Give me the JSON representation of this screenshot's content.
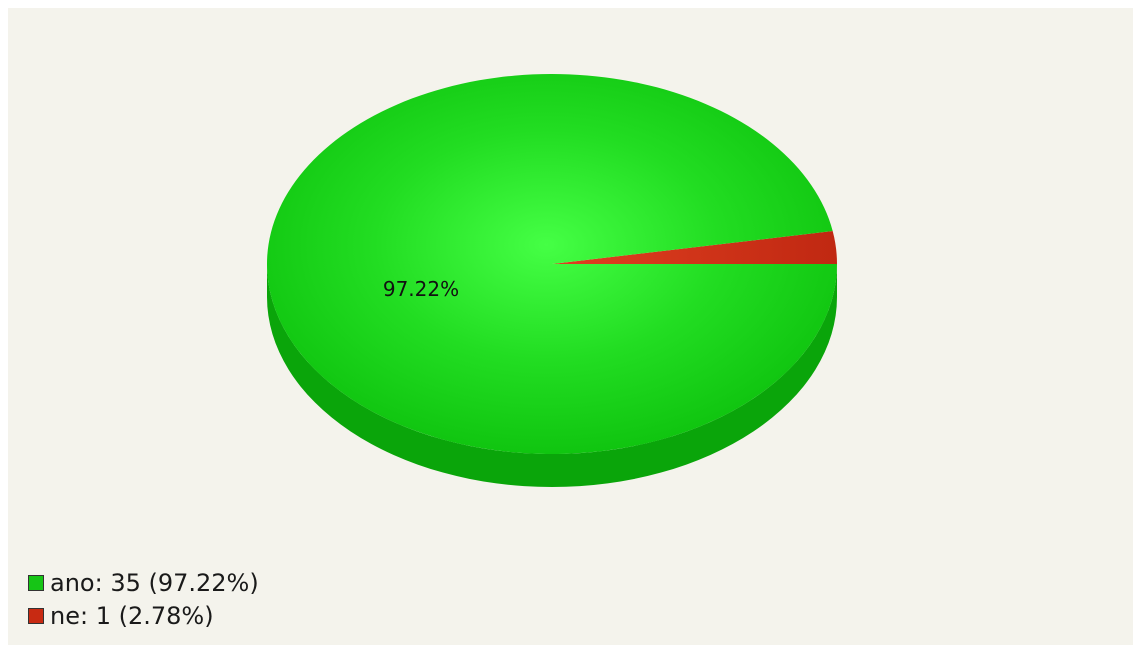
{
  "chart_data": {
    "type": "pie",
    "title": "",
    "slices": [
      {
        "label": "ano",
        "value": 35,
        "percent": "97.22%",
        "color": "#16c516"
      },
      {
        "label": "ne",
        "value": 1,
        "percent": "2.78%",
        "color": "#c82a12"
      }
    ],
    "legend_position": "bottom-left",
    "style": "3d"
  },
  "legend": {
    "items": [
      {
        "text": "ano: 35 (97.22%)",
        "color": "#16c516"
      },
      {
        "text": "ne: 1 (2.78%)",
        "color": "#c82a12"
      }
    ]
  },
  "slice_labels": [
    "97.22%"
  ]
}
